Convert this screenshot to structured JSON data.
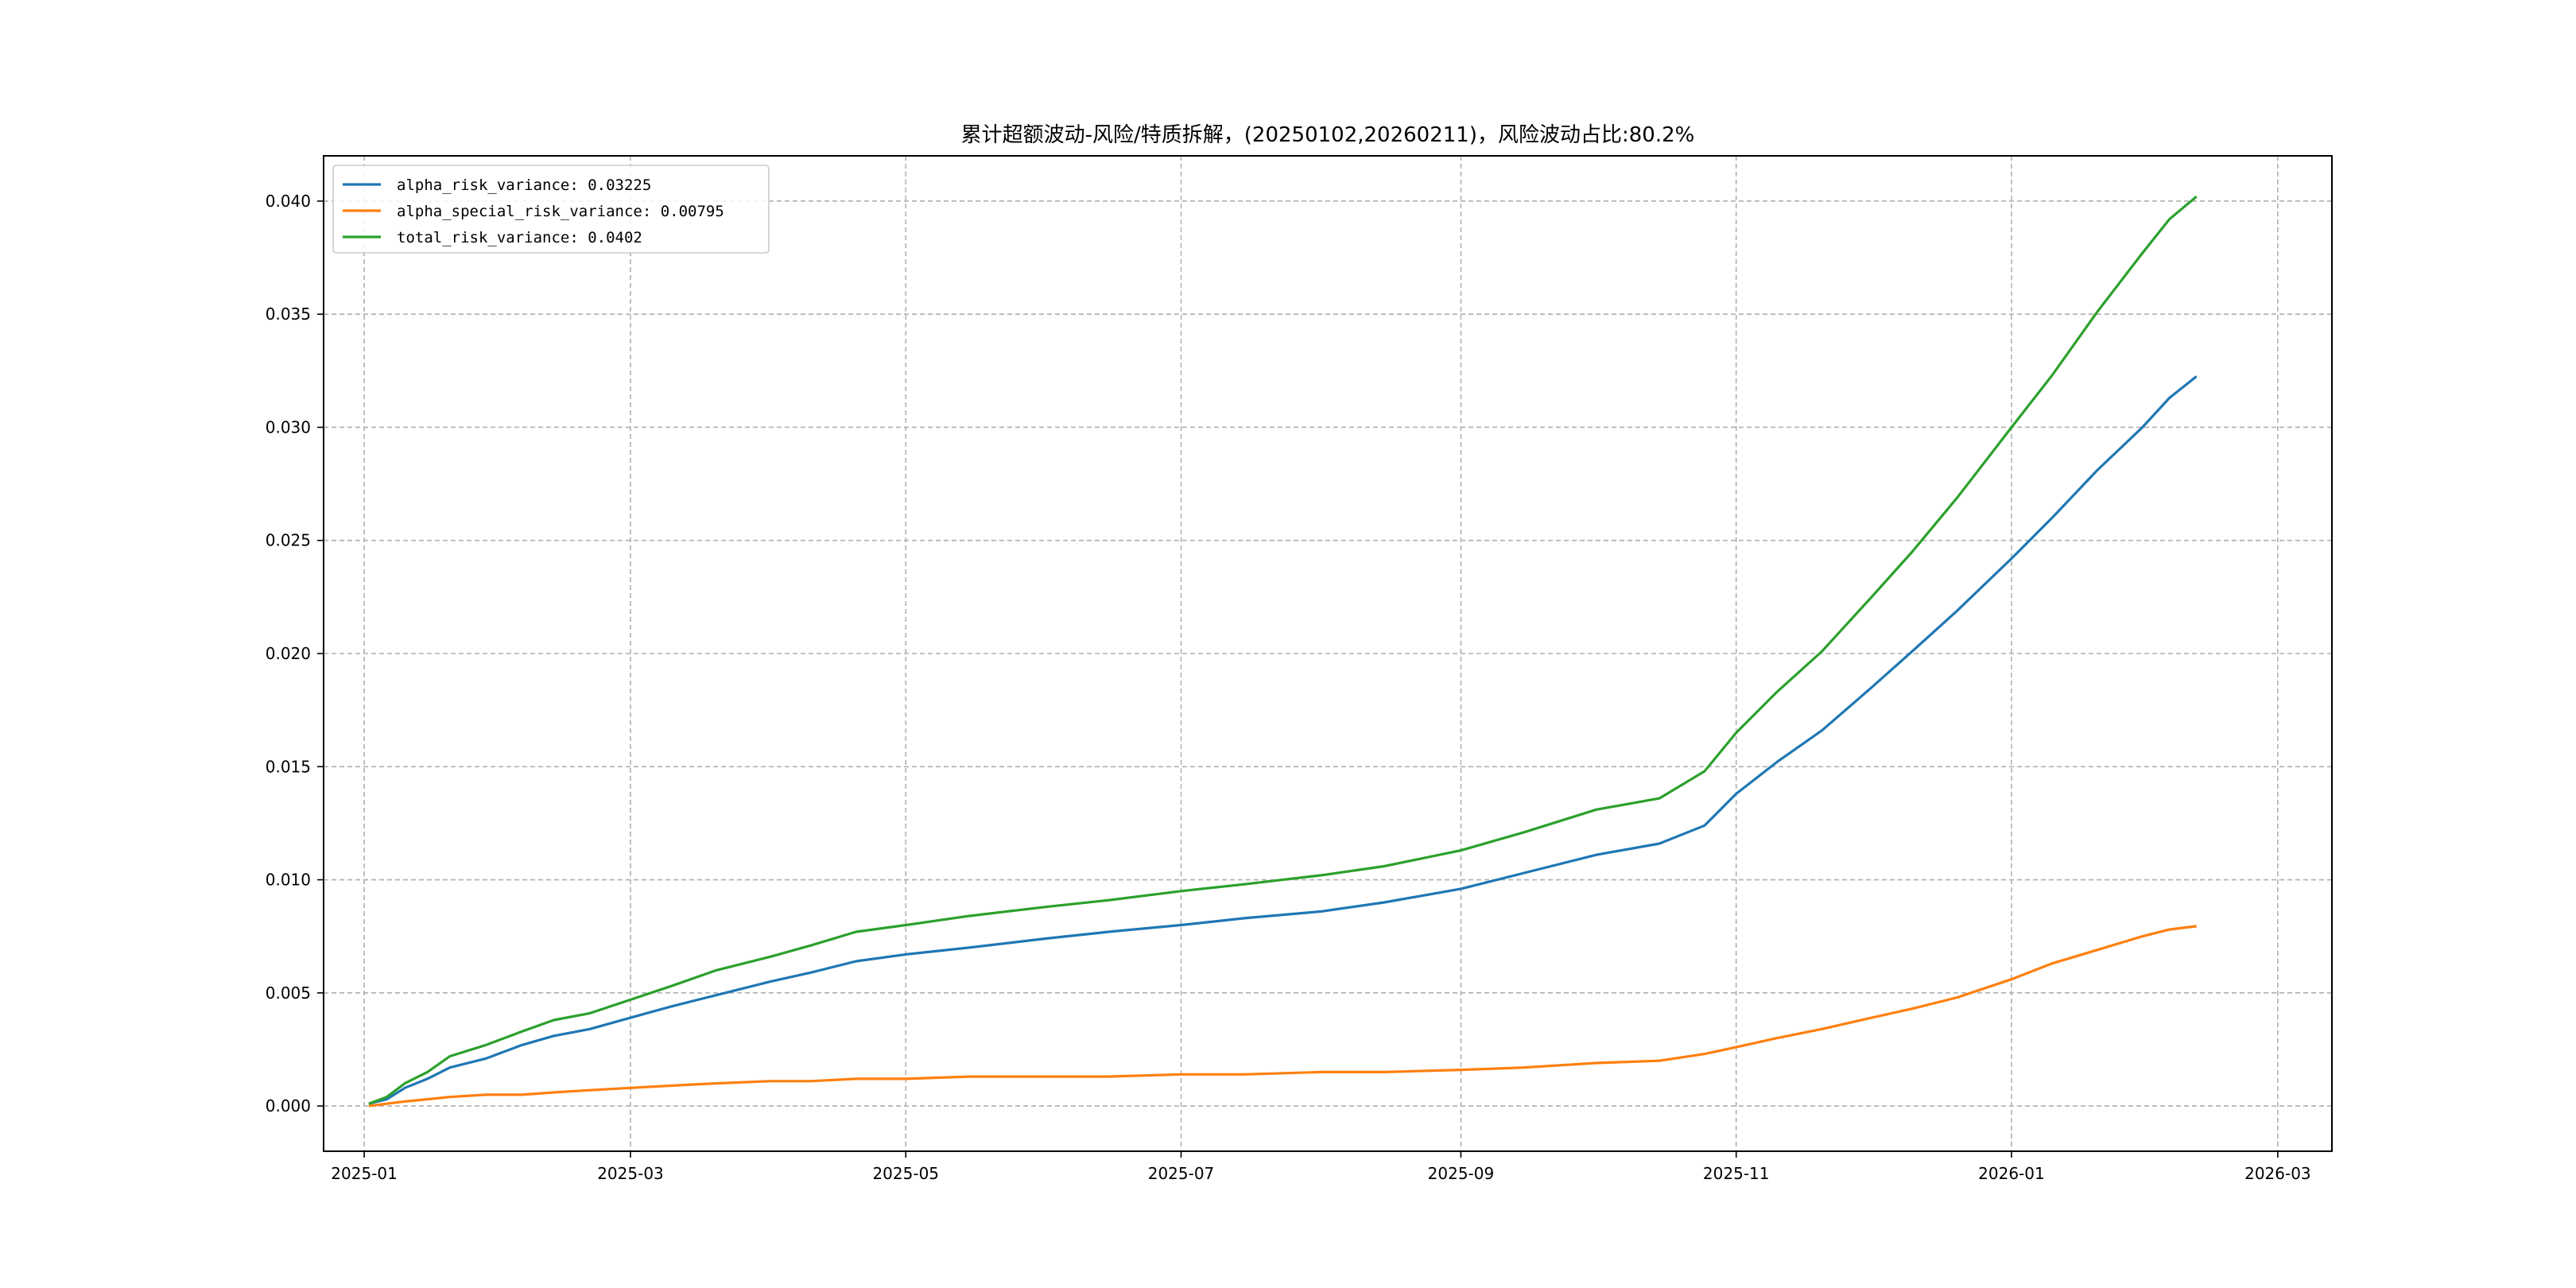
{
  "chart_data": {
    "type": "line",
    "title": "累计超额波动-风险/特质拆解，(20250102,20260211)，风险波动占比:80.2%",
    "xlabel": "",
    "ylabel": "",
    "x_ticks": [
      "2025-01",
      "2025-03",
      "2025-05",
      "2025-07",
      "2025-09",
      "2025-11",
      "2026-01",
      "2026-03"
    ],
    "y_ticks": [
      "0.000",
      "0.005",
      "0.010",
      "0.015",
      "0.020",
      "0.025",
      "0.030",
      "0.035",
      "0.040"
    ],
    "xlim": [
      "2024-12-23",
      "2026-03-13"
    ],
    "ylim": [
      -0.002,
      0.042
    ],
    "grid": true,
    "legend_position": "upper-left",
    "x": [
      "2025-01-02",
      "2025-01-06",
      "2025-01-10",
      "2025-01-15",
      "2025-01-20",
      "2025-01-28",
      "2025-02-05",
      "2025-02-12",
      "2025-02-20",
      "2025-03-01",
      "2025-03-10",
      "2025-03-20",
      "2025-04-01",
      "2025-04-10",
      "2025-04-20",
      "2025-05-01",
      "2025-05-15",
      "2025-06-01",
      "2025-06-15",
      "2025-07-01",
      "2025-07-15",
      "2025-08-01",
      "2025-08-15",
      "2025-09-01",
      "2025-09-15",
      "2025-10-01",
      "2025-10-15",
      "2025-10-25",
      "2025-11-01",
      "2025-11-10",
      "2025-11-20",
      "2025-12-01",
      "2025-12-10",
      "2025-12-20",
      "2026-01-01",
      "2026-01-10",
      "2026-01-20",
      "2026-01-30",
      "2026-02-05",
      "2026-02-11"
    ],
    "series": [
      {
        "name": "alpha_risk_variance: 0.03225",
        "color": "#1f77b4",
        "values": [
          0.0001,
          0.0003,
          0.0008,
          0.0012,
          0.0017,
          0.0021,
          0.0027,
          0.0031,
          0.0034,
          0.0039,
          0.0044,
          0.0049,
          0.0055,
          0.0059,
          0.0064,
          0.0067,
          0.007,
          0.0074,
          0.0077,
          0.008,
          0.0083,
          0.0086,
          0.009,
          0.0096,
          0.0103,
          0.0111,
          0.0116,
          0.0124,
          0.0138,
          0.0152,
          0.0166,
          0.0185,
          0.0201,
          0.0219,
          0.0242,
          0.026,
          0.0281,
          0.03,
          0.0313,
          0.03225
        ]
      },
      {
        "name": "alpha_special_risk_variance: 0.00795",
        "color": "#ff7f0e",
        "values": [
          0.0,
          0.0001,
          0.0002,
          0.0003,
          0.0004,
          0.0005,
          0.0005,
          0.0006,
          0.0007,
          0.0008,
          0.0009,
          0.001,
          0.0011,
          0.0011,
          0.0012,
          0.0012,
          0.0013,
          0.0013,
          0.0013,
          0.0014,
          0.0014,
          0.0015,
          0.0015,
          0.0016,
          0.0017,
          0.0019,
          0.002,
          0.0023,
          0.0026,
          0.003,
          0.0034,
          0.0039,
          0.0043,
          0.0048,
          0.0056,
          0.0063,
          0.0069,
          0.0075,
          0.0078,
          0.00795
        ]
      },
      {
        "name": "total_risk_variance: 0.0402",
        "color": "#2ca02c",
        "values": [
          0.0001,
          0.0004,
          0.001,
          0.0015,
          0.0022,
          0.0027,
          0.0033,
          0.0038,
          0.0041,
          0.0047,
          0.0053,
          0.006,
          0.0066,
          0.0071,
          0.0077,
          0.008,
          0.0084,
          0.0088,
          0.0091,
          0.0095,
          0.0098,
          0.0102,
          0.0106,
          0.0113,
          0.0121,
          0.0131,
          0.0136,
          0.0148,
          0.0165,
          0.0183,
          0.0201,
          0.0225,
          0.0245,
          0.0269,
          0.03,
          0.0323,
          0.0351,
          0.0377,
          0.0392,
          0.0402
        ]
      }
    ]
  }
}
